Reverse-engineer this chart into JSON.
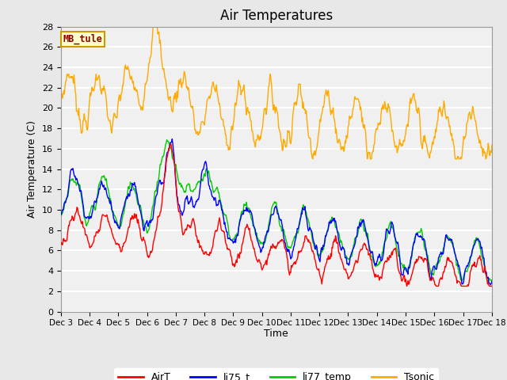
{
  "title": "Air Temperatures",
  "ylabel": "Air Temperature (C)",
  "xlabel": "Time",
  "annotation": "MB_tule",
  "ylim": [
    0,
    28
  ],
  "yticks": [
    0,
    2,
    4,
    6,
    8,
    10,
    12,
    14,
    16,
    18,
    20,
    22,
    24,
    26,
    28
  ],
  "xtick_labels": [
    "Dec 3",
    "Dec 4",
    "Dec 5",
    "Dec 6",
    "Dec 7",
    "Dec 8",
    "Dec 9",
    "Dec 10",
    "Dec 11",
    "Dec 12",
    "Dec 13",
    "Dec 14",
    "Dec 15",
    "Dec 16",
    "Dec 17",
    "Dec 18"
  ],
  "series_colors": {
    "AirT": "#ff0000",
    "li75_t": "#0000ff",
    "li77_temp": "#00cc00",
    "Tsonic": "#ffaa00"
  },
  "background_color": "#e8e8e8",
  "plot_bg_color": "#f0f0f0",
  "grid_color": "#ffffff",
  "title_fontsize": 12,
  "axis_fontsize": 9,
  "tick_fontsize": 8,
  "legend_fontsize": 9,
  "num_points": 721
}
